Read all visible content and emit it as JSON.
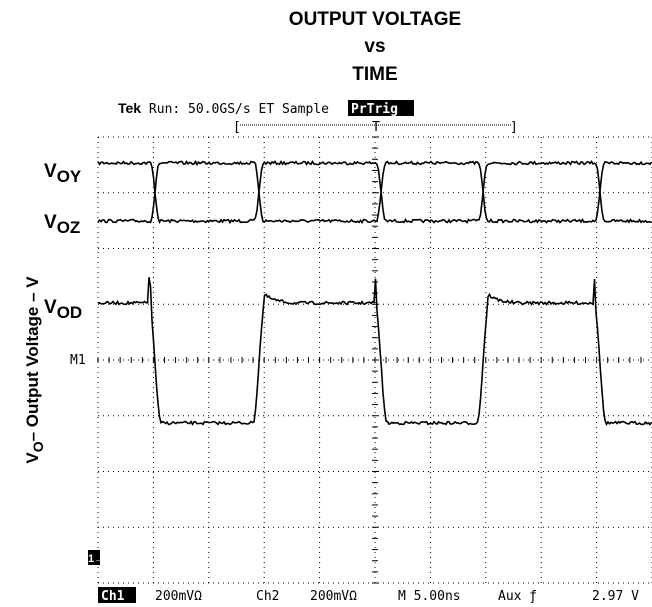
{
  "title": [
    "OUTPUT VOLTAGE",
    "vs",
    "TIME"
  ],
  "scope": {
    "status_brand": "Tek",
    "status": "Run: 50.0GS/s ET Sample",
    "trigger": "PrTrig",
    "trigger_marker": "T",
    "bracket_left": "[",
    "bracket_right": "]"
  },
  "traces": [
    {
      "main": "V",
      "sub": "OY"
    },
    {
      "main": "V",
      "sub": "OZ"
    },
    {
      "main": "V",
      "sub": "OD"
    }
  ],
  "marker": "M1",
  "channel_marker": "1→",
  "y_axis": {
    "main": "V",
    "sub": "O",
    "rest": "– Output Voltage – V"
  },
  "footer": [
    "Ch1",
    "200mVΩ",
    "Ch2",
    "200mVΩ",
    "M 5.00ns",
    "Aux ƒ",
    "2.97 V"
  ]
}
